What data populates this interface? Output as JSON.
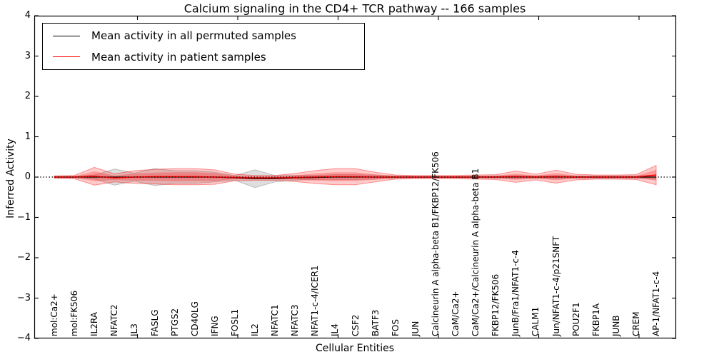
{
  "figure": {
    "title": "Calcium signaling in the CD4+ TCR pathway -- 166 samples",
    "xlabel": "Cellular Entities",
    "ylabel": "Inferred Activity"
  },
  "chart_data": {
    "type": "line",
    "title": "Calcium signaling in the CD4+ TCR pathway -- 166 samples",
    "xlabel": "Cellular Entities",
    "ylabel": "Inferred Activity",
    "ylim": [
      -4,
      4
    ],
    "ytick_values": [
      4,
      3,
      2,
      1,
      0,
      -1,
      -2,
      -3,
      -4
    ],
    "ytick_labels": [
      "4",
      "3",
      "2",
      "1",
      "0",
      "−1",
      "−2",
      "−3",
      "−4"
    ],
    "grid": false,
    "legend_position": "upper left",
    "zero_line": "black dotted horizontal line at y=0",
    "categories": [
      "mol:Ca2+",
      "mol:FK506",
      "IL2RA",
      "NFATC2",
      "IL3",
      "FASLG",
      "PTGS2",
      "CD40LG",
      "IFNG",
      "FOSL1",
      "IL2",
      "NFATC1",
      "NFATC3",
      "NFAT1-c-4/ICER1",
      "IL4",
      "CSF2",
      "BATF3",
      "FOS",
      "JUN",
      "Calcineurin A alpha-beta B1/FKBP12/FK506",
      "CaM/Ca2+",
      "CaM/Ca2+/Calcineurin A alpha-beta B1",
      "FKBP12/FK506",
      "JunB/Fra1/NFAT1-c-4",
      "CALM1",
      "Jun/NFAT1-c-4/p21SNFT",
      "POU2F1",
      "FKBP1A",
      "JUNB",
      "CREM",
      "AP-1/NFAT1-c-4"
    ],
    "series": [
      {
        "name": "Mean activity in all permuted samples",
        "color": "#000000",
        "band_fill": "rgba(0,0,0,0.13)",
        "band_edge": "rgba(0,0,0,0.20)",
        "mean": [
          0,
          0,
          0,
          0,
          0,
          0,
          0,
          0,
          0,
          -0.02,
          -0.04,
          -0.04,
          -0.02,
          -0.01,
          0,
          0,
          0,
          0,
          0,
          0,
          0,
          0,
          0,
          0,
          0,
          0,
          0,
          0,
          0,
          0,
          0
        ],
        "band_halfwidth": [
          0.02,
          0.02,
          0.05,
          0.2,
          0.1,
          0.21,
          0.16,
          0.16,
          0.12,
          0.06,
          0.22,
          0.08,
          0.06,
          0.05,
          0.06,
          0.06,
          0.05,
          0.03,
          0.02,
          0.02,
          0.02,
          0.02,
          0.03,
          0.04,
          0.03,
          0.04,
          0.03,
          0.03,
          0.03,
          0.03,
          0.05
        ]
      },
      {
        "name": "Mean activity in patient samples",
        "color": "#ff0000",
        "band_fill": "rgba(255,0,0,0.20)",
        "band_inner_fill": "rgba(255,0,0,0.25)",
        "band_edge": "rgba(255,0,0,0.40)",
        "mean": [
          0,
          0,
          0.02,
          -0.02,
          0,
          0.01,
          0.01,
          0.01,
          0,
          -0.01,
          -0.02,
          -0.02,
          -0.01,
          0,
          0.01,
          0.01,
          0,
          0,
          0,
          0,
          0,
          0,
          0,
          0.01,
          0,
          0.01,
          0,
          0,
          0,
          0,
          0.05
        ],
        "band_halfwidth": [
          0.03,
          0.04,
          0.22,
          0.1,
          0.16,
          0.18,
          0.2,
          0.2,
          0.18,
          0.08,
          0.06,
          0.06,
          0.1,
          0.16,
          0.2,
          0.2,
          0.12,
          0.05,
          0.04,
          0.04,
          0.04,
          0.05,
          0.06,
          0.14,
          0.07,
          0.16,
          0.07,
          0.05,
          0.05,
          0.06,
          0.24
        ]
      }
    ]
  }
}
